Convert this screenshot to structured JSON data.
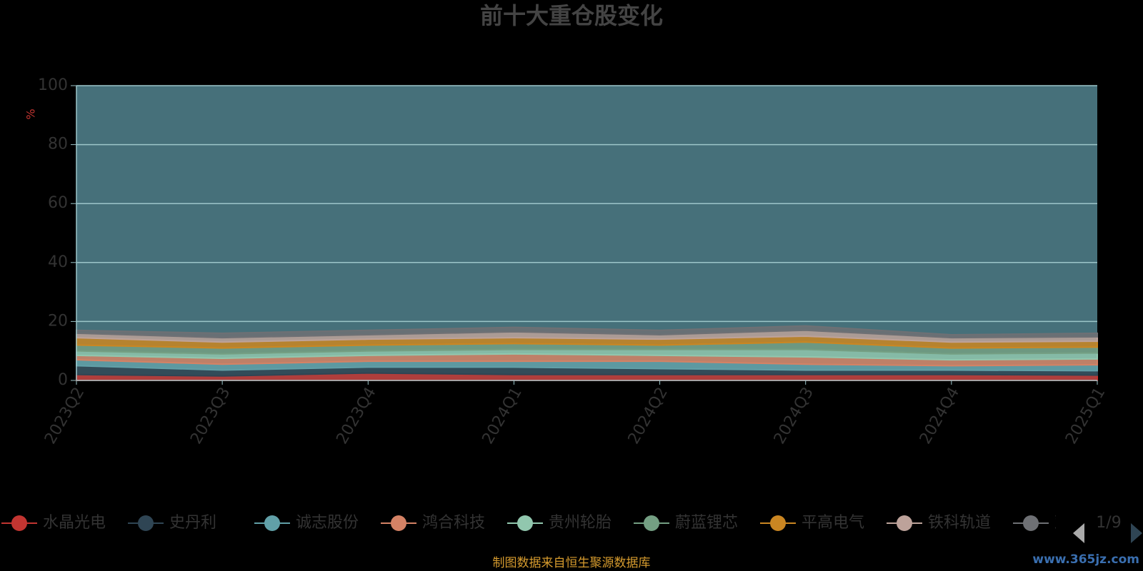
{
  "chart_data": {
    "type": "stacked_area",
    "title": "前十大重仓股变化",
    "y_label": "%",
    "categories": [
      "2023Q2",
      "2023Q3",
      "2023Q4",
      "2024Q1",
      "2024Q2",
      "2024Q3",
      "2024Q4",
      "2025Q1"
    ],
    "series": [
      {
        "name": "水晶光电",
        "color": "#c23531",
        "values": [
          2,
          1.5,
          2.5,
          2,
          2,
          2,
          2,
          1.8
        ]
      },
      {
        "name": "史丹利",
        "color": "#2f4554",
        "values": [
          3,
          2,
          2,
          2.5,
          2,
          1.5,
          1.5,
          1.5
        ]
      },
      {
        "name": "诚志股份",
        "color": "#61a0a8",
        "values": [
          2,
          2,
          2,
          2,
          2.5,
          2,
          1.5,
          2
        ]
      },
      {
        "name": "鸿合科技",
        "color": "#d48265",
        "values": [
          1.5,
          2,
          2,
          2.5,
          2,
          2.5,
          2,
          2
        ]
      },
      {
        "name": "贵州轮胎",
        "color": "#91c7ae",
        "values": [
          1.5,
          1.5,
          1.5,
          1.5,
          2,
          2.5,
          2,
          2
        ]
      },
      {
        "name": "蔚蓝锂芯",
        "color": "#749f83",
        "values": [
          2,
          2,
          2,
          2,
          1.5,
          2.5,
          2,
          2
        ]
      },
      {
        "name": "平高电气",
        "color": "#ca8622",
        "values": [
          2.5,
          2,
          2,
          2,
          2,
          2,
          2,
          2
        ]
      },
      {
        "name": "铁科轨道",
        "color": "#bda29a",
        "values": [
          1.5,
          1.5,
          1.5,
          2,
          1.5,
          2,
          1.5,
          1.5
        ]
      },
      {
        "name": "双",
        "color": "#6e7074",
        "values": [
          1,
          1.5,
          1.5,
          1.5,
          1.5,
          1.5,
          1,
          1.2
        ]
      }
    ],
    "ylim": [
      0,
      100
    ],
    "yticks": [
      0,
      20,
      40,
      60,
      80,
      100
    ],
    "grid": true,
    "legend_page": "1/9",
    "source": "制图数据来自恒生聚源数据库",
    "watermark": "www.365jz.com"
  }
}
